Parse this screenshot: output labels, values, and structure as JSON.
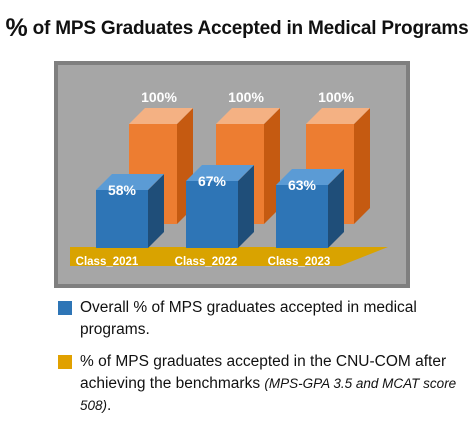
{
  "title": {
    "symbol": "%",
    "text": "of MPS Graduates Accepted in Medical Programs"
  },
  "chart_data": {
    "type": "bar",
    "title": "% of MPS Graduates Accepted in Medical Programs",
    "categories": [
      "Class_2021",
      "Class_2022",
      "Class_2023"
    ],
    "series": [
      {
        "name": "Overall % of MPS graduates accepted in medical programs.",
        "color": "#2E75B6",
        "values": [
          58,
          67,
          63
        ],
        "labels": [
          "58%",
          "67%",
          "63%"
        ]
      },
      {
        "name": "% of MPS graduates accepted in the CNU-COM after achieving the benchmarks (MPS-GPA 3.5 and MCAT score 508).",
        "color": "#ED7D31",
        "values": [
          100,
          100,
          100
        ],
        "labels": [
          "100%",
          "100%",
          "100%"
        ]
      }
    ],
    "ylim": [
      0,
      100
    ],
    "legend_position": "bottom",
    "style": "3d-columns",
    "colors": {
      "wall": "#A6A6A6",
      "wall_border": "#7F7F7F",
      "floor": "#D9A300",
      "blue_front": "#2E75B6",
      "blue_side": "#1F4E79",
      "blue_top": "#5B9BD5",
      "orange_front": "#ED7D31",
      "orange_side": "#C55A11",
      "orange_top": "#F4B183"
    }
  },
  "legend": {
    "items": [
      {
        "color": "#2E75B6",
        "text": "Overall % of MPS graduates accepted in medical programs.",
        "sub": ""
      },
      {
        "color": "#E1A100",
        "text": "% of MPS graduates accepted in the CNU-COM after achieving the benchmarks",
        "sub": "(MPS-GPA 3.5 and MCAT score 508)",
        "tail": "."
      }
    ]
  }
}
